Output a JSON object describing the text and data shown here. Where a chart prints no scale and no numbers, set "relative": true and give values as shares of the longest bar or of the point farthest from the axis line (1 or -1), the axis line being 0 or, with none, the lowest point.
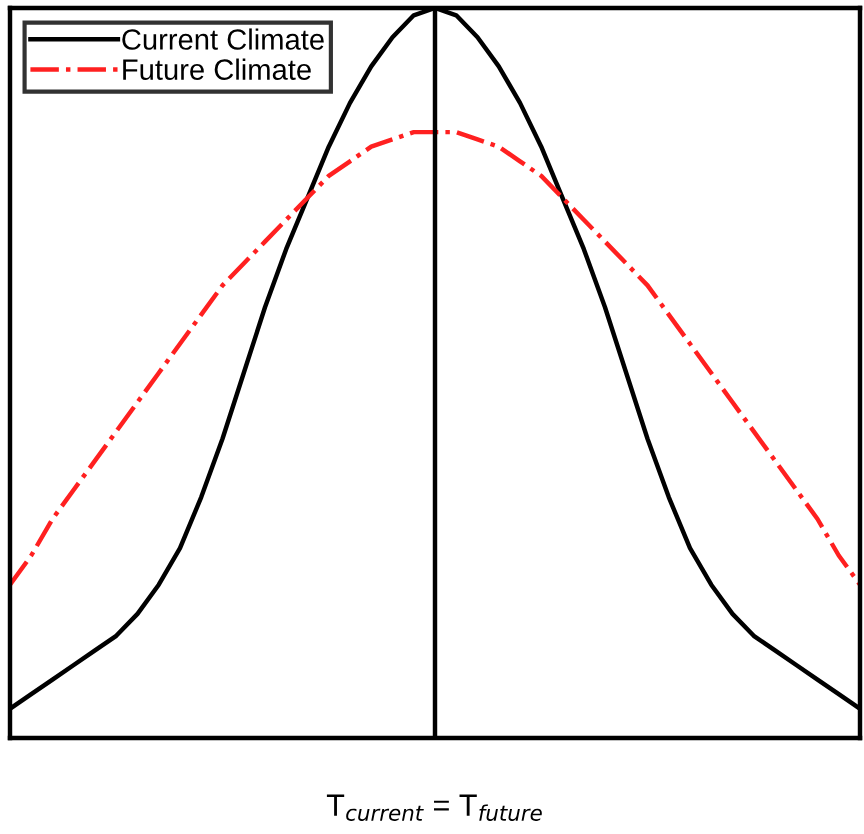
{
  "chart_data": {
    "type": "line",
    "relative": true,
    "legend": "top left",
    "categories": [
      null,
      null,
      null,
      null,
      null,
      null,
      null,
      null,
      null,
      null,
      null,
      null,
      null,
      null,
      null,
      null,
      null,
      null,
      null,
      null,
      null,
      null,
      null,
      null,
      null,
      null,
      null,
      null,
      null,
      null,
      null,
      null,
      null,
      null,
      null,
      null,
      null,
      null,
      null,
      null,
      null
    ],
    "series": [
      {
        "name": "Current Climate",
        "color": "#000000",
        "line_style": "solid",
        "values": [
          0.04,
          0.06,
          0.08,
          0.1,
          0.12,
          0.14,
          0.17,
          0.21,
          0.26,
          0.33,
          0.41,
          0.5,
          0.59,
          0.67,
          0.74,
          0.81,
          0.87,
          0.92,
          0.96,
          0.99,
          1.0,
          0.99,
          0.96,
          0.92,
          0.87,
          0.81,
          0.74,
          0.67,
          0.59,
          0.5,
          0.41,
          0.33,
          0.26,
          0.21,
          0.17,
          0.14,
          0.12,
          0.1,
          0.08,
          0.06,
          0.04
        ]
      },
      {
        "name": "Future Climate",
        "color": "#ff2020",
        "line_style": "dashdot",
        "values": [
          0.21,
          0.25,
          0.3,
          0.34,
          0.38,
          0.42,
          0.46,
          0.5,
          0.54,
          0.58,
          0.62,
          0.65,
          0.68,
          0.71,
          0.74,
          0.77,
          0.79,
          0.81,
          0.82,
          0.83,
          0.83,
          0.83,
          0.82,
          0.81,
          0.79,
          0.77,
          0.74,
          0.71,
          0.68,
          0.65,
          0.62,
          0.58,
          0.54,
          0.5,
          0.46,
          0.42,
          0.38,
          0.34,
          0.3,
          0.25,
          0.21
        ]
      }
    ],
    "ref_lines": [
      {
        "axis": "x",
        "label": "T$_{current}$ = T$_{future}$",
        "color": "#000000"
      }
    ]
  }
}
